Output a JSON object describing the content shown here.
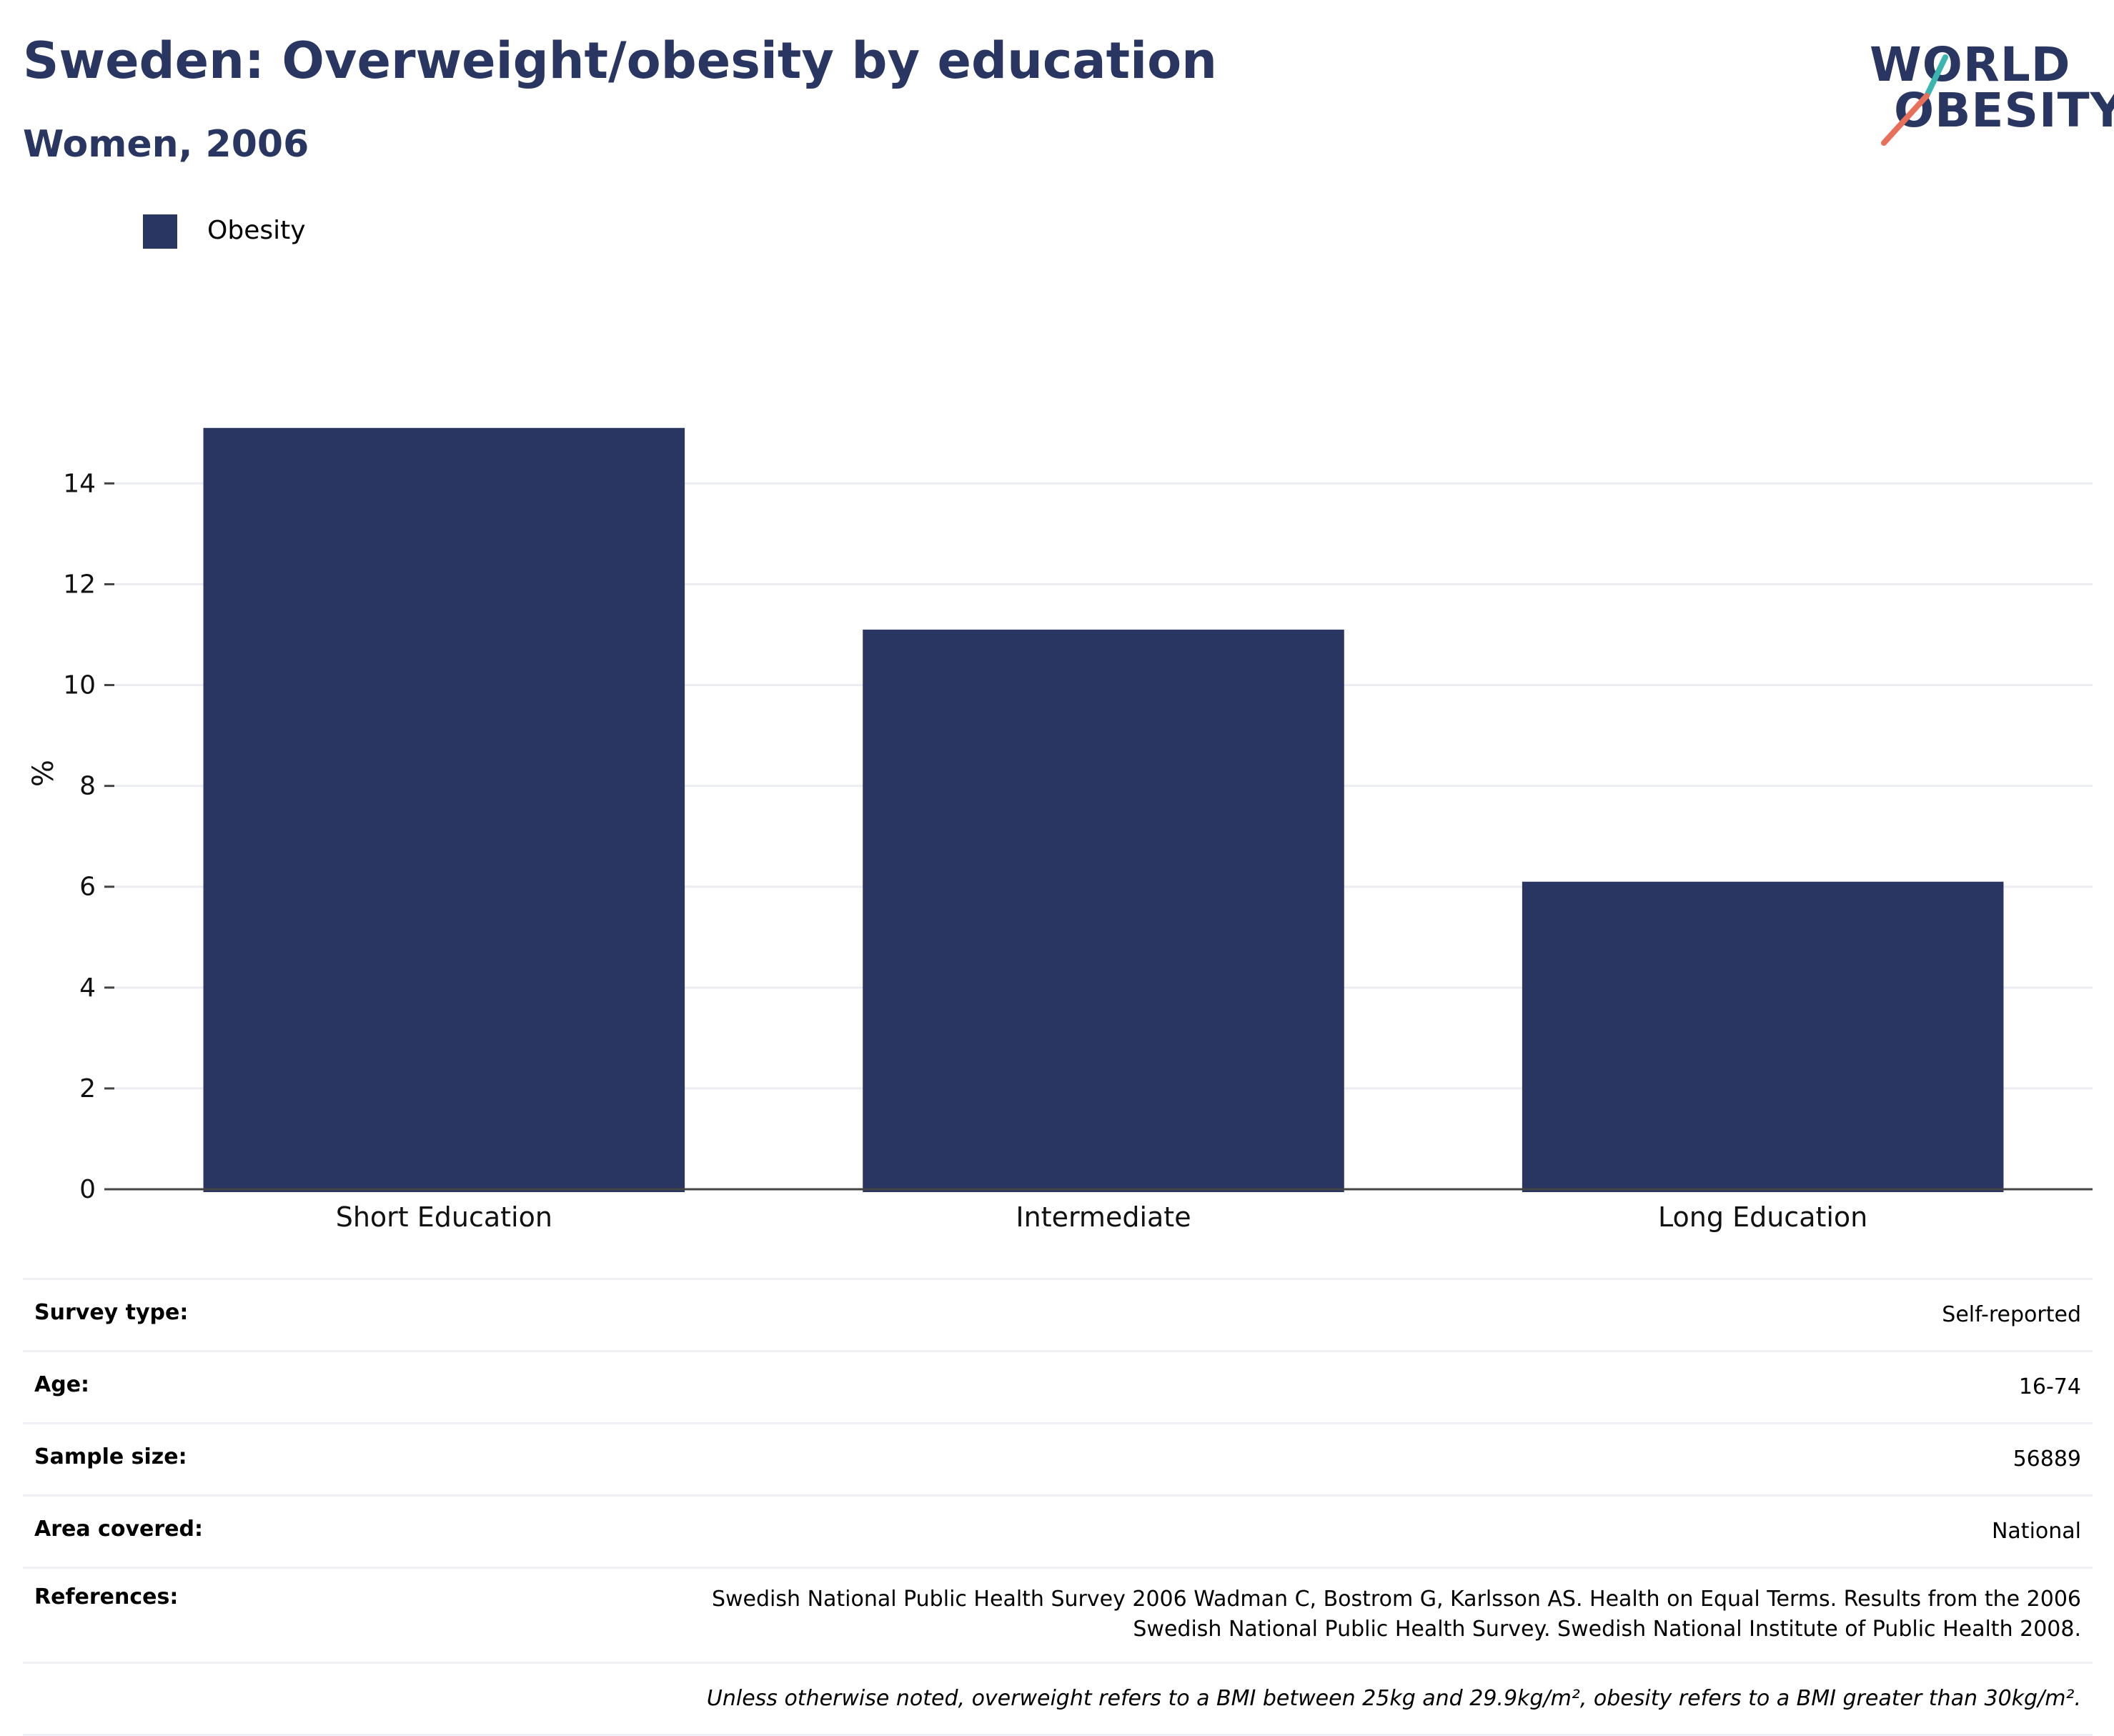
{
  "header": {
    "title": "Sweden: Overweight/obesity by education",
    "subtitle": "Women, 2006"
  },
  "logo": {
    "line1": "WORLD",
    "line2": "OBESITY",
    "accent_teal": "#3ab5b0",
    "accent_coral": "#e8705a"
  },
  "legend": {
    "label": "Obesity",
    "color": "#2a3662"
  },
  "chart_data": {
    "type": "bar",
    "categories": [
      "Short Education",
      "Intermediate",
      "Long Education"
    ],
    "series": [
      {
        "name": "Obesity",
        "values": [
          15.1,
          11.1,
          6.1
        ],
        "color": "#2a3662"
      }
    ],
    "ylabel": "%",
    "xlabel": "",
    "ylim": [
      0,
      16.5
    ],
    "yticks": [
      0,
      2,
      4,
      6,
      8,
      10,
      12,
      14
    ],
    "grid": true,
    "legend_position": "top-left"
  },
  "info": {
    "rows": [
      {
        "key": "Survey type:",
        "value": "Self-reported"
      },
      {
        "key": "Age:",
        "value": "16-74"
      },
      {
        "key": "Sample size:",
        "value": "56889"
      },
      {
        "key": "Area covered:",
        "value": "National"
      }
    ],
    "references_key": "References:",
    "references_line1": "Swedish National Public Health Survey 2006 Wadman C, Bostrom G, Karlsson AS. Health on Equal Terms. Results from the 2006",
    "references_line2": "Swedish National Public Health Survey. Swedish National Institute of Public Health 2008.",
    "note": "Unless otherwise noted, overweight refers to a BMI between 25kg and 29.9kg/m², obesity refers to a BMI greater than 30kg/m²."
  }
}
